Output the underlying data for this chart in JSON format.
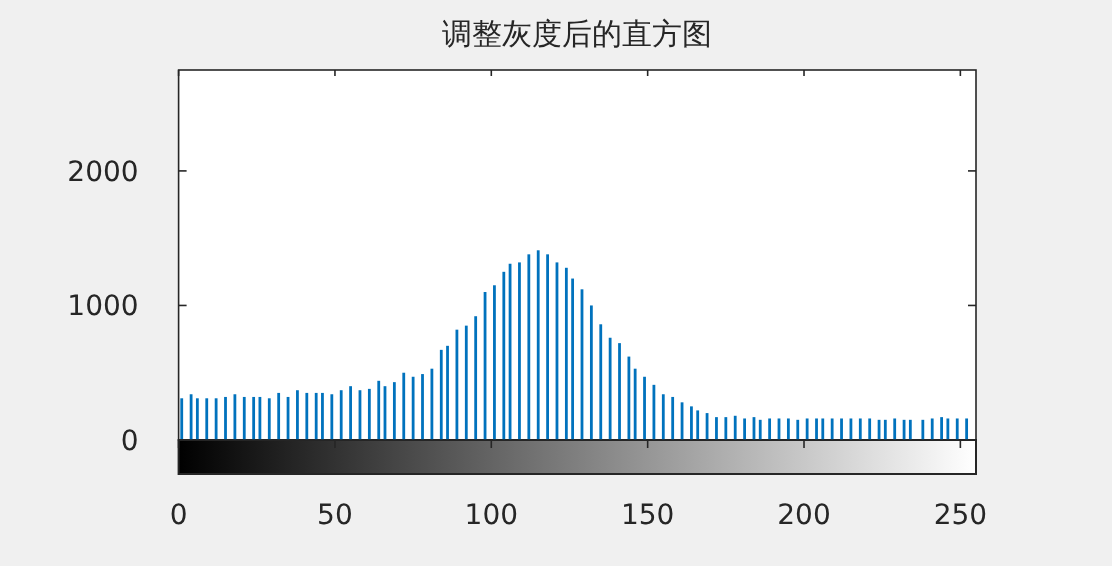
{
  "chart_data": {
    "type": "bar",
    "title": "调整灰度后的直方图",
    "color": "#0072bd",
    "x": [
      1,
      4,
      6,
      9,
      12,
      15,
      18,
      21,
      24,
      26,
      29,
      32,
      35,
      38,
      41,
      44,
      46,
      49,
      52,
      55,
      58,
      61,
      64,
      66,
      69,
      72,
      75,
      78,
      81,
      84,
      86,
      89,
      92,
      95,
      98,
      101,
      104,
      106,
      109,
      112,
      115,
      118,
      121,
      124,
      126,
      129,
      132,
      135,
      138,
      141,
      144,
      146,
      149,
      152,
      155,
      158,
      161,
      164,
      166,
      169,
      172,
      175,
      178,
      181,
      184,
      186,
      189,
      192,
      195,
      198,
      201,
      204,
      206,
      209,
      212,
      215,
      218,
      221,
      224,
      226,
      229,
      232,
      234,
      238,
      241,
      244,
      246,
      249,
      252
    ],
    "values": [
      310,
      340,
      310,
      310,
      310,
      320,
      340,
      320,
      320,
      320,
      310,
      350,
      320,
      370,
      350,
      350,
      350,
      340,
      370,
      400,
      370,
      380,
      440,
      400,
      430,
      500,
      470,
      490,
      530,
      670,
      700,
      820,
      850,
      920,
      1100,
      1150,
      1250,
      1310,
      1320,
      1380,
      1410,
      1380,
      1320,
      1280,
      1200,
      1120,
      1000,
      860,
      760,
      720,
      620,
      530,
      470,
      410,
      340,
      320,
      280,
      250,
      220,
      200,
      170,
      170,
      180,
      160,
      170,
      150,
      160,
      160,
      160,
      150,
      160,
      160,
      160,
      160,
      160,
      160,
      160,
      160,
      150,
      150,
      160,
      150,
      150,
      150,
      160,
      170,
      160,
      160,
      160
    ],
    "xlim": [
      0,
      255
    ],
    "ylim": [
      0,
      2750
    ],
    "xticks": [
      0,
      50,
      100,
      150,
      200,
      250
    ],
    "yticks": [
      0,
      1000,
      2000
    ]
  }
}
